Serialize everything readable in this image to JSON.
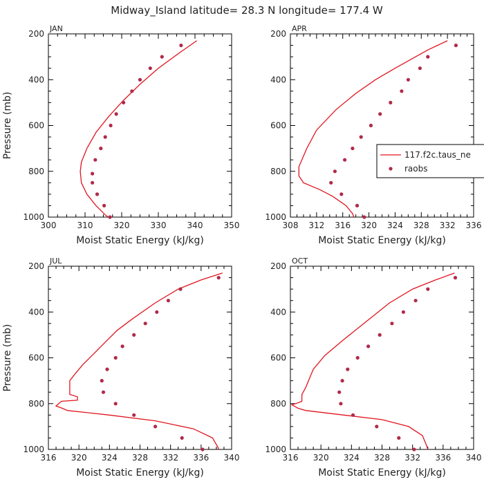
{
  "figure_title": "Midway_Island  latitude= 28.3 N longitude= 177.4 W",
  "colors": {
    "model": "#e0141e",
    "obs": "#b02a4a",
    "axis": "#000000",
    "text": "#222222"
  },
  "legend": {
    "model_label": "117.f2c.taus_ne",
    "obs_label": "raobs"
  },
  "chart_data": [
    {
      "type": "line",
      "panel": "JAN",
      "xlabel": "Moist Static Energy (kJ/kg)",
      "ylabel": "Pressure (mb)",
      "xlim": [
        300,
        350
      ],
      "ylim": [
        1000,
        200
      ],
      "xticks": [
        300,
        310,
        320,
        330,
        340,
        350
      ],
      "yticks": [
        200,
        400,
        600,
        800,
        1000
      ],
      "series": [
        {
          "name": "117.f2c.taus_ne",
          "kind": "line",
          "points": [
            [
              340.5,
              230
            ],
            [
              336,
              280
            ],
            [
              330,
              350
            ],
            [
              325,
              420
            ],
            [
              320.5,
              490
            ],
            [
              316.5,
              560
            ],
            [
              313,
              630
            ],
            [
              310.5,
              700
            ],
            [
              309,
              760
            ],
            [
              308.7,
              800
            ],
            [
              309,
              850
            ],
            [
              310.5,
              900
            ],
            [
              313,
              950
            ],
            [
              315.5,
              990
            ],
            [
              316.3,
              1000
            ]
          ]
        },
        {
          "name": "raobs",
          "kind": "points",
          "points": [
            [
              336.2,
              250
            ],
            [
              331,
              300
            ],
            [
              327.8,
              350
            ],
            [
              325,
              400
            ],
            [
              322.8,
              450
            ],
            [
              320.5,
              500
            ],
            [
              318.5,
              550
            ],
            [
              317,
              600
            ],
            [
              315.5,
              650
            ],
            [
              314.3,
              700
            ],
            [
              312.8,
              750
            ],
            [
              312,
              810
            ],
            [
              312,
              850
            ],
            [
              313.3,
              900
            ],
            [
              315.2,
              950
            ],
            [
              316.8,
              1000
            ]
          ]
        }
      ]
    },
    {
      "type": "line",
      "panel": "APR",
      "xlabel": "Moist Static Energy (kJ/kg)",
      "ylabel": "",
      "xlim": [
        308,
        336
      ],
      "ylim": [
        1000,
        200
      ],
      "xticks": [
        308,
        312,
        316,
        320,
        324,
        328,
        332,
        336
      ],
      "yticks": [
        200,
        400,
        600,
        800,
        1000
      ],
      "series": [
        {
          "name": "117.f2c.taus_ne",
          "kind": "line",
          "points": [
            [
              332,
              230
            ],
            [
              329,
              270
            ],
            [
              326.5,
              310
            ],
            [
              324,
              350
            ],
            [
              321,
              400
            ],
            [
              318,
              460
            ],
            [
              315,
              530
            ],
            [
              312,
              620
            ],
            [
              310.5,
              700
            ],
            [
              309.3,
              780
            ],
            [
              309.3,
              820
            ],
            [
              310,
              850
            ],
            [
              312.5,
              880
            ],
            [
              314.5,
              910
            ],
            [
              316.5,
              950
            ],
            [
              317.5,
              985
            ],
            [
              317.7,
              1000
            ]
          ]
        },
        {
          "name": "raobs",
          "kind": "points",
          "points": [
            [
              333.3,
              250
            ],
            [
              329,
              300
            ],
            [
              327.8,
              350
            ],
            [
              326,
              400
            ],
            [
              325,
              450
            ],
            [
              323.3,
              500
            ],
            [
              321.7,
              550
            ],
            [
              320.3,
              600
            ],
            [
              318.8,
              650
            ],
            [
              317.5,
              700
            ],
            [
              316.3,
              750
            ],
            [
              314.8,
              800
            ],
            [
              314.2,
              850
            ],
            [
              315.8,
              900
            ],
            [
              318.2,
              950
            ],
            [
              319.3,
              1000
            ]
          ]
        }
      ]
    },
    {
      "type": "line",
      "panel": "JUL",
      "xlabel": "Moist Static Energy (kJ/kg)",
      "ylabel": "Pressure (mb)",
      "xlim": [
        316,
        340
      ],
      "ylim": [
        1000,
        200
      ],
      "xticks": [
        316,
        320,
        324,
        328,
        332,
        336,
        340
      ],
      "yticks": [
        200,
        400,
        600,
        800,
        1000
      ],
      "series": [
        {
          "name": "117.f2c.taus_ne",
          "kind": "line",
          "points": [
            [
              338.8,
              230
            ],
            [
              336,
              260
            ],
            [
              333,
              300
            ],
            [
              330,
              360
            ],
            [
              327,
              430
            ],
            [
              325,
              480
            ],
            [
              323.5,
              530
            ],
            [
              322,
              580
            ],
            [
              320.5,
              630
            ],
            [
              319.5,
              670
            ],
            [
              318.8,
              700
            ],
            [
              318.8,
              760
            ],
            [
              319.8,
              770
            ],
            [
              319.8,
              785
            ],
            [
              317.7,
              790
            ],
            [
              317,
              810
            ],
            [
              317.8,
              820
            ],
            [
              318.5,
              830
            ],
            [
              324,
              850
            ],
            [
              330,
              875
            ],
            [
              335,
              910
            ],
            [
              337.5,
              950
            ],
            [
              338.2,
              990
            ],
            [
              338.3,
              1000
            ]
          ]
        },
        {
          "name": "raobs",
          "kind": "points",
          "points": [
            [
              338.3,
              250
            ],
            [
              333.3,
              300
            ],
            [
              331.7,
              350
            ],
            [
              330.2,
              400
            ],
            [
              328.7,
              450
            ],
            [
              327.2,
              500
            ],
            [
              325.7,
              550
            ],
            [
              324.8,
              600
            ],
            [
              323.7,
              650
            ],
            [
              323,
              700
            ],
            [
              323.2,
              750
            ],
            [
              324.8,
              800
            ],
            [
              327.2,
              850
            ],
            [
              330,
              900
            ],
            [
              333.5,
              950
            ],
            [
              336.2,
              1000
            ]
          ]
        }
      ]
    },
    {
      "type": "line",
      "panel": "OCT",
      "xlabel": "Moist Static Energy (kJ/kg)",
      "ylabel": "",
      "xlim": [
        316,
        340
      ],
      "ylim": [
        1000,
        200
      ],
      "xticks": [
        316,
        320,
        324,
        328,
        332,
        336,
        340
      ],
      "yticks": [
        200,
        400,
        600,
        800,
        1000
      ],
      "series": [
        {
          "name": "117.f2c.taus_ne",
          "kind": "line",
          "points": [
            [
              337.5,
              230
            ],
            [
              335,
              260
            ],
            [
              332,
              300
            ],
            [
              329,
              360
            ],
            [
              326,
              440
            ],
            [
              323,
              520
            ],
            [
              320.5,
              590
            ],
            [
              319,
              650
            ],
            [
              318.5,
              690
            ],
            [
              318,
              730
            ],
            [
              317.5,
              760
            ],
            [
              317.5,
              790
            ],
            [
              316.7,
              800
            ],
            [
              316.2,
              805
            ],
            [
              317,
              820
            ],
            [
              318,
              830
            ],
            [
              323,
              850
            ],
            [
              328,
              870
            ],
            [
              331.5,
              900
            ],
            [
              333.3,
              940
            ],
            [
              333.8,
              980
            ],
            [
              334,
              1000
            ]
          ]
        },
        {
          "name": "raobs",
          "kind": "points",
          "points": [
            [
              337.6,
              250
            ],
            [
              334,
              300
            ],
            [
              332.4,
              350
            ],
            [
              330.8,
              400
            ],
            [
              329.3,
              450
            ],
            [
              327.7,
              500
            ],
            [
              326.2,
              550
            ],
            [
              324.8,
              600
            ],
            [
              323.5,
              650
            ],
            [
              322.8,
              700
            ],
            [
              322.4,
              750
            ],
            [
              322.6,
              800
            ],
            [
              324.2,
              850
            ],
            [
              327.3,
              900
            ],
            [
              330.2,
              950
            ],
            [
              332.2,
              1000
            ]
          ]
        }
      ]
    }
  ]
}
